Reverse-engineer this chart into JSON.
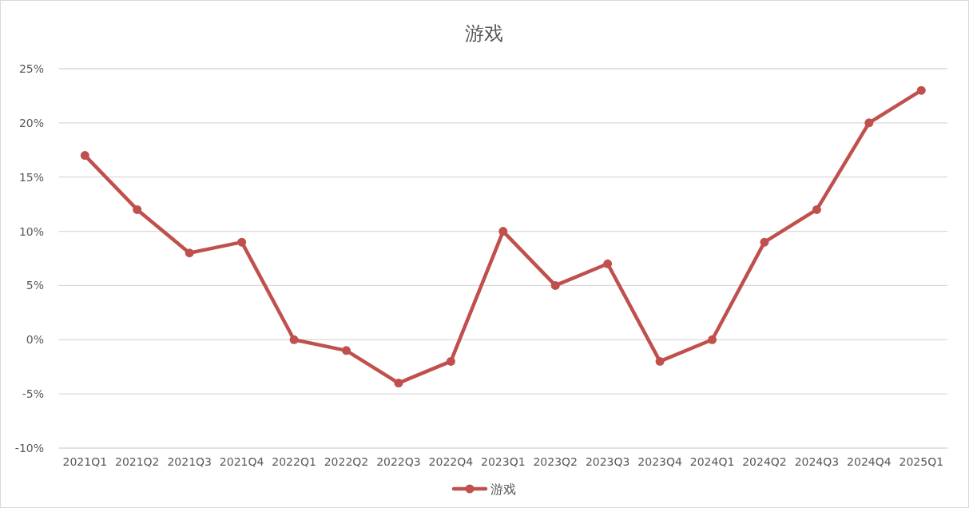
{
  "chart_data": {
    "type": "line",
    "title": "游戏",
    "categories": [
      "2021Q1",
      "2021Q2",
      "2021Q3",
      "2021Q4",
      "2022Q1",
      "2022Q2",
      "2022Q3",
      "2022Q4",
      "2023Q1",
      "2023Q2",
      "2023Q3",
      "2023Q4",
      "2024Q1",
      "2024Q2",
      "2024Q3",
      "2024Q4",
      "2025Q1"
    ],
    "series": [
      {
        "name": "游戏",
        "color": "#c0504d",
        "values": [
          17,
          12,
          8,
          9,
          0,
          -1,
          -4,
          -2,
          10,
          5,
          7,
          -2,
          0,
          9,
          12,
          20,
          23
        ]
      }
    ],
    "ylim": [
      -10,
      25
    ],
    "yticks": [
      {
        "value": -10,
        "label": "-10%"
      },
      {
        "value": -5,
        "label": "-5%"
      },
      {
        "value": 0,
        "label": "0%"
      },
      {
        "value": 5,
        "label": "5%"
      },
      {
        "value": 10,
        "label": "10%"
      },
      {
        "value": 15,
        "label": "15%"
      },
      {
        "value": 20,
        "label": "20%"
      },
      {
        "value": 25,
        "label": "25%"
      }
    ],
    "grid": "y",
    "legend": "bottom",
    "marker": "circle",
    "line_style": "solid"
  }
}
